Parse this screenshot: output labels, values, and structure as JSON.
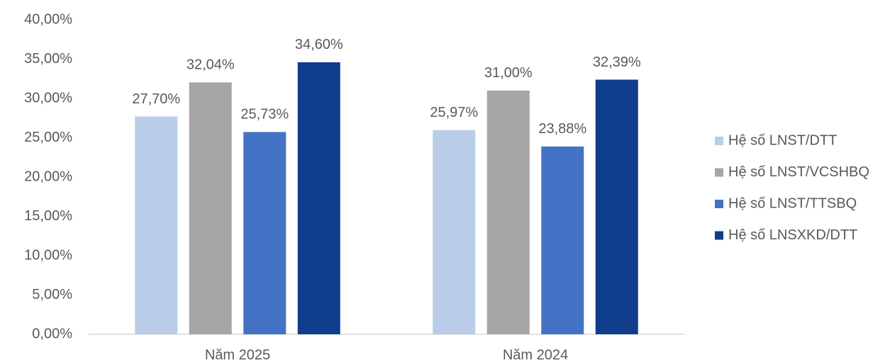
{
  "chart_data": {
    "type": "bar",
    "categories": [
      "Năm 2025",
      "Năm 2024"
    ],
    "series": [
      {
        "name": "Hệ số LNST/DTT",
        "color": "#b9cde8",
        "values": [
          27.7,
          25.97
        ],
        "value_labels": [
          "27,70%",
          "25,97%"
        ]
      },
      {
        "name": "Hệ số LNST/VCSHBQ",
        "color": "#a5a5a5",
        "values": [
          32.04,
          31.0
        ],
        "value_labels": [
          "32,04%",
          "31,00%"
        ]
      },
      {
        "name": "Hệ số LNST/TTSBQ",
        "color": "#4472c4",
        "values": [
          25.73,
          23.88
        ],
        "value_labels": [
          "25,73%",
          "23,88%"
        ]
      },
      {
        "name": "Hệ số LNSXKD/DTT",
        "color": "#0f3d8c",
        "values": [
          34.6,
          32.39
        ],
        "value_labels": [
          "34,60%",
          "32,39%"
        ]
      }
    ],
    "ylim": [
      0,
      40
    ],
    "yticks": [
      {
        "value": 0,
        "label": "0,00%"
      },
      {
        "value": 5,
        "label": "5,00%"
      },
      {
        "value": 10,
        "label": "10,00%"
      },
      {
        "value": 15,
        "label": "15,00%"
      },
      {
        "value": 20,
        "label": "20,00%"
      },
      {
        "value": 25,
        "label": "25,00%"
      },
      {
        "value": 30,
        "label": "30,00%"
      },
      {
        "value": 35,
        "label": "35,00%"
      },
      {
        "value": 40,
        "label": "40,00%"
      }
    ],
    "grid": false,
    "legend": "right"
  }
}
